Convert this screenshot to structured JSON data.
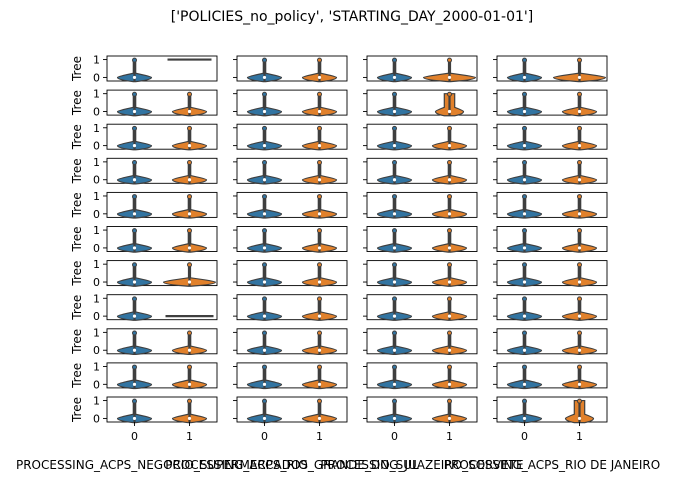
{
  "chart_data": {
    "type": "violin",
    "title": "['POLICIES_no_policy', 'STARTING_DAY_2000-01-01']",
    "rows": 11,
    "ylabel": "Tree",
    "ylim": [
      -0.2,
      1.2
    ],
    "yticks": [
      0,
      1
    ],
    "xticks": [
      "0",
      "1"
    ],
    "series_colors": {
      "0": "#3274a1",
      "1": "#e1812c"
    },
    "columns": [
      {
        "xlabel": "PROCESSING_ACPS_NEGOCIO_SUPERMERCADOS",
        "xlabel_visible": "PROCESSING_ACPS_NEGOCIO_SUPERMERCADOS",
        "panels": [
          {
            "v0": "std",
            "v1": "one"
          },
          {
            "v0": "std",
            "v1": "std"
          },
          {
            "v0": "std",
            "v1": "std"
          },
          {
            "v0": "std",
            "v1": "std"
          },
          {
            "v0": "std",
            "v1": "std"
          },
          {
            "v0": "std",
            "v1": "std"
          },
          {
            "v0": "std",
            "v1": "wide"
          },
          {
            "v0": "std",
            "v1": "zero"
          },
          {
            "v0": "std",
            "v1": "std"
          },
          {
            "v0": "std",
            "v1": "std"
          },
          {
            "v0": "std",
            "v1": "std"
          }
        ]
      },
      {
        "xlabel": "PROCESSING_ACPS_RIO_GRANDE_DO_SUL",
        "panels": [
          {
            "v0": "std",
            "v1": "std"
          },
          {
            "v0": "std",
            "v1": "std"
          },
          {
            "v0": "std",
            "v1": "std"
          },
          {
            "v0": "std",
            "v1": "std"
          },
          {
            "v0": "std",
            "v1": "std"
          },
          {
            "v0": "std",
            "v1": "std"
          },
          {
            "v0": "std",
            "v1": "std"
          },
          {
            "v0": "std",
            "v1": "std"
          },
          {
            "v0": "std",
            "v1": "std"
          },
          {
            "v0": "std",
            "v1": "std"
          },
          {
            "v0": "std",
            "v1": "std"
          }
        ]
      },
      {
        "xlabel": "PROCESSING_JUAZEIRO_SORVETE",
        "panels": [
          {
            "v0": "std",
            "v1": "wide"
          },
          {
            "v0": "std",
            "v1": "thick"
          },
          {
            "v0": "std",
            "v1": "std"
          },
          {
            "v0": "std",
            "v1": "std"
          },
          {
            "v0": "std",
            "v1": "std"
          },
          {
            "v0": "std",
            "v1": "std"
          },
          {
            "v0": "std",
            "v1": "std"
          },
          {
            "v0": "std",
            "v1": "std"
          },
          {
            "v0": "std",
            "v1": "std"
          },
          {
            "v0": "std",
            "v1": "std"
          },
          {
            "v0": "std",
            "v1": "std"
          }
        ]
      },
      {
        "xlabel": "PROCESSING_ACPS_RIO DE JANEIRO",
        "panels": [
          {
            "v0": "std",
            "v1": "wide"
          },
          {
            "v0": "std",
            "v1": "std"
          },
          {
            "v0": "std",
            "v1": "std"
          },
          {
            "v0": "std",
            "v1": "std"
          },
          {
            "v0": "std",
            "v1": "std"
          },
          {
            "v0": "std",
            "v1": "std"
          },
          {
            "v0": "std",
            "v1": "std"
          },
          {
            "v0": "std",
            "v1": "std"
          },
          {
            "v0": "std",
            "v1": "std"
          },
          {
            "v0": "std",
            "v1": "std"
          },
          {
            "v0": "std",
            "v1": "thick"
          }
        ]
      }
    ]
  }
}
